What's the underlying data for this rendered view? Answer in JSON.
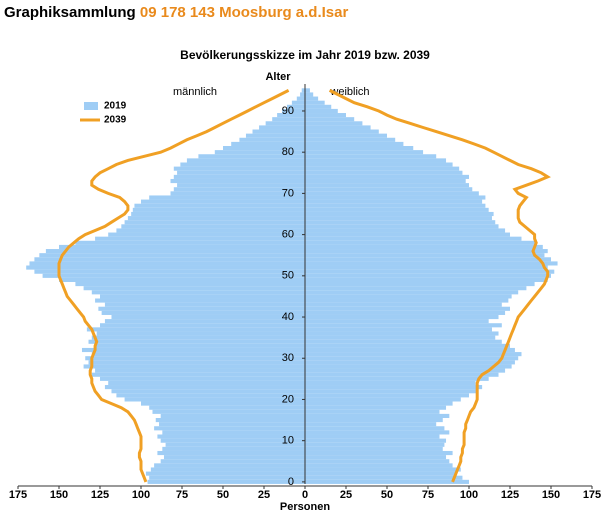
{
  "header": {
    "title": "Graphiksammlung",
    "region": "09 178 143 Moosburg a.d.Isar"
  },
  "chart_data": {
    "type": "pyramid",
    "title": "Bevölkerungsskizze im Jahr 2019 bzw. 2039",
    "y_label": "Alter",
    "x_label": "Personen",
    "side_labels": [
      "männlich",
      "weiblich"
    ],
    "xlim": [
      -175,
      175
    ],
    "xticks": [
      {
        "value": -175,
        "label": "175"
      },
      {
        "value": -150,
        "label": "150"
      },
      {
        "value": -125,
        "label": "125"
      },
      {
        "value": -100,
        "label": "100"
      },
      {
        "value": -75,
        "label": "75"
      },
      {
        "value": -50,
        "label": "50"
      },
      {
        "value": -25,
        "label": "25"
      },
      0,
      25,
      50,
      75,
      100,
      125,
      150,
      175
    ],
    "ylim": [
      -1,
      98
    ],
    "yticks": [
      0,
      10,
      20,
      30,
      40,
      50,
      60,
      70,
      80,
      90
    ],
    "y": [
      0,
      1,
      2,
      3,
      4,
      5,
      6,
      7,
      8,
      9,
      10,
      11,
      12,
      13,
      14,
      15,
      16,
      17,
      18,
      19,
      20,
      21,
      22,
      23,
      24,
      25,
      26,
      27,
      28,
      29,
      30,
      31,
      32,
      33,
      34,
      35,
      36,
      37,
      38,
      39,
      40,
      41,
      42,
      43,
      44,
      45,
      46,
      47,
      48,
      49,
      50,
      51,
      52,
      53,
      54,
      55,
      56,
      57,
      58,
      59,
      60,
      61,
      62,
      63,
      64,
      65,
      66,
      67,
      68,
      69,
      70,
      71,
      72,
      73,
      74,
      75,
      76,
      77,
      78,
      79,
      80,
      81,
      82,
      83,
      84,
      85,
      86,
      87,
      88,
      89,
      90,
      91,
      92,
      93,
      94,
      95
    ],
    "series": [
      {
        "name": "2019",
        "color": "#9fcdf5",
        "style": "bar",
        "male": [
          96,
          95,
          97,
          94,
          92,
          88,
          86,
          90,
          87,
          85,
          88,
          90,
          87,
          92,
          89,
          91,
          88,
          93,
          95,
          100,
          110,
          115,
          118,
          122,
          120,
          125,
          130,
          128,
          135,
          132,
          134,
          130,
          136,
          128,
          132,
          130,
          127,
          133,
          125,
          122,
          118,
          124,
          126,
          122,
          128,
          125,
          130,
          135,
          140,
          150,
          160,
          165,
          170,
          168,
          165,
          162,
          158,
          150,
          140,
          128,
          120,
          115,
          112,
          110,
          108,
          106,
          105,
          104,
          100,
          95,
          82,
          80,
          78,
          82,
          80,
          78,
          80,
          76,
          72,
          65,
          55,
          50,
          45,
          40,
          36,
          32,
          28,
          24,
          20,
          17,
          14,
          11,
          8,
          5,
          3,
          2
        ],
        "female": [
          100,
          96,
          92,
          95,
          90,
          88,
          86,
          90,
          84,
          85,
          86,
          82,
          88,
          85,
          80,
          84,
          88,
          82,
          86,
          90,
          95,
          100,
          105,
          108,
          104,
          112,
          118,
          122,
          126,
          128,
          130,
          132,
          128,
          125,
          120,
          116,
          118,
          114,
          120,
          112,
          118,
          122,
          125,
          120,
          124,
          126,
          130,
          135,
          140,
          148,
          150,
          152,
          148,
          154,
          150,
          146,
          148,
          145,
          140,
          132,
          125,
          122,
          118,
          116,
          114,
          115,
          112,
          110,
          108,
          110,
          106,
          102,
          100,
          98,
          100,
          96,
          94,
          90,
          86,
          80,
          72,
          66,
          60,
          55,
          50,
          45,
          40,
          35,
          30,
          25,
          20,
          16,
          12,
          8,
          5,
          3
        ]
      },
      {
        "name": "2039",
        "color": "#f0a024",
        "style": "line",
        "male": [
          97,
          98,
          99,
          100,
          100,
          100,
          101,
          101,
          100,
          100,
          100,
          100,
          101,
          102,
          103,
          104,
          106,
          108,
          112,
          118,
          124,
          126,
          128,
          129,
          130,
          130,
          131,
          131,
          130,
          130,
          130,
          129,
          128,
          128,
          127,
          128,
          129,
          130,
          132,
          134,
          135,
          137,
          139,
          141,
          143,
          145,
          146,
          147,
          148,
          149,
          150,
          150,
          150,
          150,
          149,
          148,
          146,
          144,
          141,
          138,
          134,
          128,
          122,
          118,
          114,
          110,
          108,
          108,
          110,
          113,
          120,
          126,
          130,
          130,
          128,
          125,
          120,
          115,
          108,
          98,
          88,
          82,
          77,
          72,
          66,
          60,
          55,
          50,
          45,
          40,
          35,
          30,
          25,
          20,
          15,
          10
        ],
        "female": [
          90,
          91,
          92,
          93,
          94,
          95,
          95,
          96,
          96,
          97,
          97,
          97,
          97,
          98,
          98,
          99,
          100,
          101,
          103,
          104,
          105,
          105,
          105,
          105,
          105,
          106,
          108,
          112,
          115,
          118,
          120,
          121,
          122,
          123,
          124,
          125,
          126,
          127,
          128,
          129,
          130,
          132,
          134,
          136,
          138,
          140,
          142,
          144,
          146,
          147,
          148,
          148,
          146,
          145,
          143,
          140,
          139,
          140,
          141,
          140,
          140,
          137,
          134,
          131,
          130,
          130,
          130,
          131,
          133,
          135,
          130,
          128,
          135,
          142,
          148,
          144,
          138,
          130,
          125,
          120,
          115,
          110,
          103,
          96,
          88,
          80,
          72,
          64,
          56,
          50,
          45,
          38,
          30,
          25,
          20,
          15
        ]
      }
    ]
  }
}
